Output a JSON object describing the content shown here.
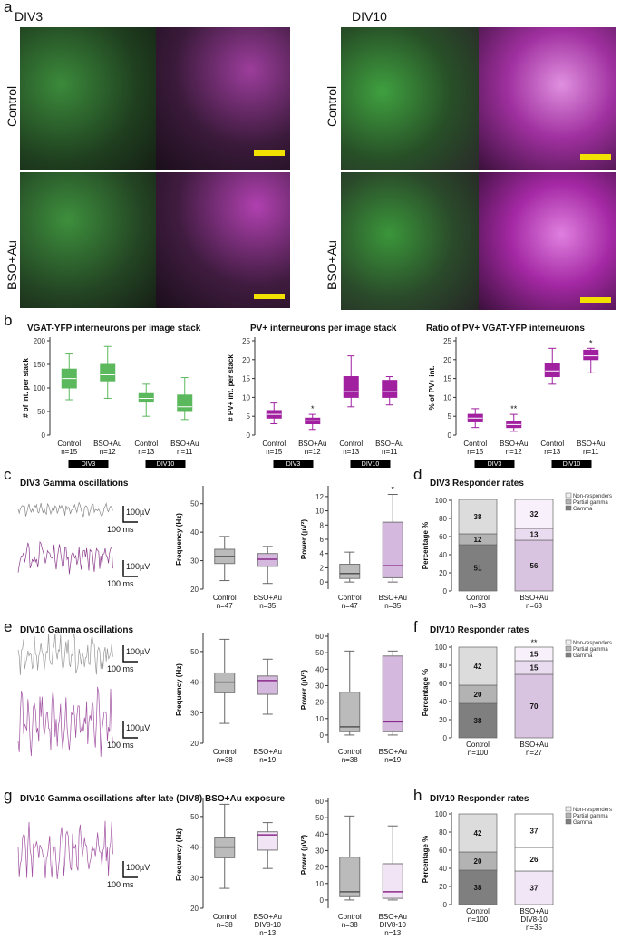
{
  "panel_a": {
    "letter": "a",
    "col1": "DIV3",
    "col2": "DIV10",
    "row1": "Control",
    "row2": "BSO+Au"
  },
  "panel_b": {
    "letter": "b",
    "colors": {
      "control": "#5cb85c",
      "treat": "#a020a0"
    }
  },
  "panel_c": {
    "letter": "c",
    "title": "DIV3 Gamma oscillations",
    "scale_v": "100µV",
    "scale_t": "100 ms"
  },
  "panel_d": {
    "letter": "d",
    "title": "DIV3 Responder rates"
  },
  "panel_e": {
    "letter": "e",
    "title": "DIV10 Gamma oscillations",
    "scale_v": "100µV",
    "scale_t": "100 ms"
  },
  "panel_f": {
    "letter": "f",
    "title": "DIV10 Responder rates"
  },
  "panel_g": {
    "letter": "g",
    "title": "DIV10 Gamma oscillations after late (DIV8) BSO+Au exposure",
    "scale_v": "100µV",
    "scale_t": "100 ms"
  },
  "panel_h": {
    "letter": "h",
    "title": "DIV10 Responder rates"
  },
  "chart_data": [
    {
      "id": "b1",
      "type": "box",
      "title": "VGAT-YFP interneurons per image stack",
      "ylabel": "# of int. per stack",
      "ylim": [
        0,
        200
      ],
      "yticks": [
        0,
        50,
        100,
        150,
        200
      ],
      "categories": [
        "Control\nn=15",
        "BSO+Au\nn=12",
        "Control\nn=13",
        "BSO+Au\nn=11"
      ],
      "groups": [
        "DIV3",
        "DIV10"
      ],
      "boxes": [
        [
          75,
          100,
          120,
          140,
          172
        ],
        [
          78,
          115,
          128,
          150,
          188
        ],
        [
          40,
          70,
          78,
          88,
          108
        ],
        [
          33,
          50,
          60,
          85,
          122
        ]
      ],
      "colors": [
        "#5cb85c",
        "#5cb85c",
        "#5cb85c",
        "#5cb85c"
      ],
      "sig": [
        "",
        "",
        "",
        ""
      ]
    },
    {
      "id": "b2",
      "type": "box",
      "title": "PV+ interneurons per image stack",
      "ylabel": "# PV+ int. per stack",
      "ylim": [
        0,
        25
      ],
      "yticks": [
        0,
        5,
        10,
        15,
        20,
        25
      ],
      "categories": [
        "Control\nn=15",
        "BSO+Au\nn=12",
        "Control\nn=13",
        "BSO+Au\nn=11"
      ],
      "groups": [
        "DIV3",
        "DIV10"
      ],
      "boxes": [
        [
          3,
          4.5,
          5.5,
          6.5,
          8.5
        ],
        [
          1.5,
          3,
          3.8,
          4.5,
          5.5
        ],
        [
          7.5,
          10,
          11.5,
          15.5,
          21
        ],
        [
          8,
          10,
          11.5,
          14.5,
          15.5
        ]
      ],
      "colors": [
        "#a020a0",
        "#a020a0",
        "#a020a0",
        "#a020a0"
      ],
      "sig": [
        "",
        "*",
        "",
        ""
      ]
    },
    {
      "id": "b3",
      "type": "box",
      "title": "Ratio of PV+ VGAT-YFP interneurons",
      "ylabel": "% of PV+ int.",
      "ylim": [
        0,
        25
      ],
      "yticks": [
        0,
        5,
        10,
        15,
        20,
        25
      ],
      "categories": [
        "Control\nn=15",
        "BSO+Au\nn=12",
        "Control\nn=13",
        "BSO+Au\nn=11"
      ],
      "groups": [
        "DIV3",
        "DIV10"
      ],
      "boxes": [
        [
          2,
          3.5,
          4.5,
          5.5,
          7
        ],
        [
          1,
          2,
          2.8,
          3.5,
          5.5
        ],
        [
          13.5,
          15.5,
          17,
          19,
          23
        ],
        [
          16.5,
          20,
          21,
          22.5,
          23
        ]
      ],
      "colors": [
        "#a020a0",
        "#a020a0",
        "#a020a0",
        "#a020a0"
      ],
      "sig": [
        "",
        "**",
        "",
        "*"
      ]
    },
    {
      "id": "c1",
      "type": "box",
      "ylabel": "Frequency (Hz)",
      "ylim": [
        20,
        55
      ],
      "yticks": [
        20,
        30,
        40,
        50
      ],
      "categories": [
        "Control\nn=47",
        "BSO+Au\nn=35"
      ],
      "boxes": [
        [
          23,
          29,
          31.5,
          34,
          38.5
        ],
        [
          22,
          28,
          30.5,
          32.5,
          35
        ]
      ],
      "colors": [
        "#999999",
        "#a86ab0"
      ],
      "sig": [
        "",
        ""
      ]
    },
    {
      "id": "c2",
      "type": "box",
      "ylabel": "Power (µV²)",
      "ylim": [
        -1,
        13
      ],
      "yticks": [
        0,
        2,
        4,
        6,
        8,
        10,
        12
      ],
      "categories": [
        "Control\nn=47",
        "BSO+Au\nn=35"
      ],
      "boxes": [
        [
          0,
          0.5,
          1.2,
          2.5,
          4.2
        ],
        [
          0,
          0.6,
          2.3,
          8.4,
          12.3
        ]
      ],
      "colors": [
        "#999999",
        "#a86ab0"
      ],
      "sig": [
        "",
        "*"
      ]
    },
    {
      "id": "d",
      "type": "stacked_bar",
      "title": "DIV3 Responder rates",
      "ylabel": "Percentage %",
      "ylim": [
        0,
        100
      ],
      "yticks": [
        0,
        20,
        40,
        60,
        80,
        100
      ],
      "categories": [
        "Control\nn=93",
        "BSO+Au\nn=63"
      ],
      "legend": [
        "Non-responders",
        "Partial gamma",
        "Gamma"
      ],
      "stacks": [
        [
          51,
          12,
          38
        ],
        [
          56,
          13,
          32
        ]
      ],
      "sig": [
        "",
        ""
      ],
      "colors": [
        [
          "#7f7f7f",
          "#b3b3b3",
          "#dcdcdc"
        ],
        [
          "#d8c4e0",
          "#eadcf0",
          "#f8f0fb"
        ]
      ]
    },
    {
      "id": "e1",
      "type": "box",
      "ylabel": "Frequency (Hz)",
      "ylim": [
        20,
        55
      ],
      "yticks": [
        20,
        30,
        40,
        50
      ],
      "categories": [
        "Control\nn=38",
        "BSO+Au\nn=19"
      ],
      "boxes": [
        [
          26.5,
          36.5,
          40,
          43,
          54
        ],
        [
          29.5,
          36,
          40.5,
          42,
          47.5
        ]
      ],
      "colors": [
        "#999999",
        "#a86ab0"
      ],
      "sig": [
        "",
        ""
      ]
    },
    {
      "id": "e2",
      "type": "box",
      "ylabel": "Power (µV²)",
      "ylim": [
        -5,
        60
      ],
      "yticks": [
        0,
        10,
        20,
        30,
        40,
        50,
        60
      ],
      "categories": [
        "Control\nn=38",
        "BSO+Au\nn=19"
      ],
      "boxes": [
        [
          0,
          2,
          5,
          26,
          51
        ],
        [
          0,
          2,
          8,
          48,
          51
        ]
      ],
      "colors": [
        "#999999",
        "#a86ab0"
      ],
      "sig": [
        "",
        ""
      ]
    },
    {
      "id": "f",
      "type": "stacked_bar",
      "title": "DIV10 Responder rates",
      "ylabel": "Percentage %",
      "ylim": [
        0,
        100
      ],
      "yticks": [
        0,
        20,
        40,
        60,
        80,
        100
      ],
      "categories": [
        "Control\nn=100",
        "BSO+Au\nn=27"
      ],
      "legend": [
        "Non-responders",
        "Partial gamma",
        "Gamma"
      ],
      "stacks": [
        [
          38,
          20,
          42
        ],
        [
          70,
          15,
          15
        ]
      ],
      "sig": [
        "",
        "**"
      ],
      "colors": [
        [
          "#7f7f7f",
          "#b3b3b3",
          "#dcdcdc"
        ],
        [
          "#d8c4e0",
          "#eadcf0",
          "#f8f0fb"
        ]
      ]
    },
    {
      "id": "g1",
      "type": "box",
      "ylabel": "Frequency (Hz)",
      "ylim": [
        20,
        55
      ],
      "yticks": [
        20,
        30,
        40,
        50
      ],
      "categories": [
        "Control\nn=38",
        "BSO+Au\nDIV8-10\nn=13"
      ],
      "boxes": [
        [
          26.5,
          36.5,
          40,
          43,
          54
        ],
        [
          33,
          39,
          44,
          45,
          48
        ]
      ],
      "colors": [
        "#999999",
        "#a86ab0"
      ],
      "sig": [
        "",
        ""
      ]
    },
    {
      "id": "g2",
      "type": "box",
      "ylabel": "Power (µV²)",
      "ylim": [
        -5,
        60
      ],
      "yticks": [
        0,
        10,
        20,
        30,
        40,
        50,
        60
      ],
      "categories": [
        "Control\nn=38",
        "BSO+Au\nDIV8-10\nn=13"
      ],
      "boxes": [
        [
          0,
          2,
          5,
          26,
          51
        ],
        [
          0,
          1,
          5,
          22,
          45
        ]
      ],
      "colors": [
        "#999999",
        "#a86ab0"
      ],
      "sig": [
        "",
        ""
      ]
    },
    {
      "id": "h",
      "type": "stacked_bar",
      "title": "DIV10 Responder rates",
      "ylabel": "Percentage %",
      "ylim": [
        0,
        100
      ],
      "yticks": [
        0,
        20,
        40,
        60,
        80,
        100
      ],
      "categories": [
        "Control\nn=100",
        "BSO+Au\nDIV8-10\nn=35"
      ],
      "legend": [
        "Non-responders",
        "Partial gamma",
        "Gamma"
      ],
      "stacks": [
        [
          38,
          20,
          42
        ],
        [
          37,
          26,
          37
        ]
      ],
      "sig": [
        "",
        ""
      ],
      "colors": [
        [
          "#7f7f7f",
          "#b3b3b3",
          "#dcdcdc"
        ],
        [
          "#f1e6f5",
          "#ffffff",
          "#ffffff"
        ]
      ]
    }
  ]
}
